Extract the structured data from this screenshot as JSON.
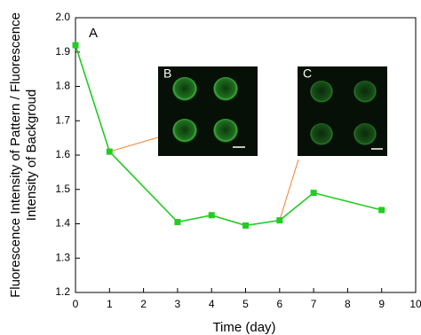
{
  "chart_data": {
    "type": "line",
    "x_label": "Time (day)",
    "y_label": [
      "Fluorescence Intensity of Pattern / Fluorescence",
      "Intensity of Backgroud"
    ],
    "panel_label": "A",
    "insets": [
      {
        "label": "B"
      },
      {
        "label": "C"
      }
    ],
    "x": [
      0,
      1,
      3,
      4,
      5,
      6,
      7,
      9
    ],
    "series": [
      {
        "color": "#22cc22",
        "values": [
          1.92,
          1.61,
          1.405,
          1.425,
          1.395,
          1.41,
          1.49,
          1.44
        ]
      }
    ],
    "xlim": [
      0,
      10
    ],
    "xticks": [
      0,
      1,
      2,
      3,
      4,
      5,
      6,
      7,
      8,
      9,
      10
    ],
    "ylim": [
      1.2,
      2.0
    ],
    "yticks": [
      1.2,
      1.3,
      1.4,
      1.5,
      1.6,
      1.7,
      1.8,
      1.9,
      {
        "value": 2,
        "label": "2.0"
      }
    ]
  }
}
